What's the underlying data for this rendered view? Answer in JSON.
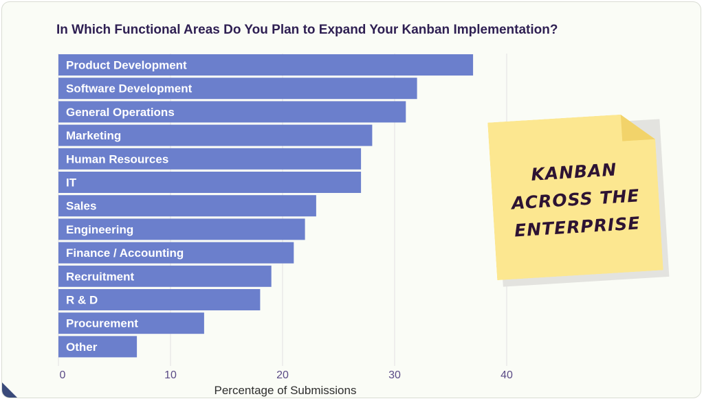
{
  "chart_data": {
    "type": "bar",
    "orientation": "horizontal",
    "title": "In Which Functional Areas Do You Plan to Expand Your Kanban Implementation?",
    "xlabel": "Percentage of Submissions",
    "ylabel": "",
    "xlim": [
      0,
      43
    ],
    "xticks": [
      0,
      10,
      20,
      30,
      40
    ],
    "grid": true,
    "categories": [
      "Product Development",
      "Software Development",
      "General Operations",
      "Marketing",
      "Human Resources",
      "IT",
      "Sales",
      "Engineering",
      "Finance / Accounting",
      "Recruitment",
      "R & D",
      "Procurement",
      "Other"
    ],
    "values": [
      37,
      32,
      31,
      28,
      27,
      27,
      23,
      22,
      21,
      19,
      18,
      13,
      7
    ],
    "bar_color": "#6b7fcc"
  },
  "sticky_note": {
    "lines": [
      "KANBAN",
      "ACROSS THE",
      "ENTERPRISE"
    ],
    "color": "#fce790"
  }
}
